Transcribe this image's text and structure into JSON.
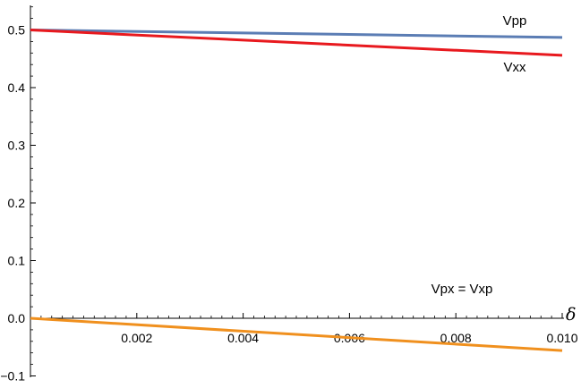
{
  "chart_data": {
    "type": "line",
    "xlabel": "δ",
    "ylabel": "",
    "xlim": [
      0,
      0.01
    ],
    "ylim": [
      -0.1,
      0.55
    ],
    "x_ticks": [
      0.002,
      0.004,
      0.006,
      0.008,
      0.01
    ],
    "x_tick_labels": [
      "0.002",
      "0.004",
      "0.006",
      "0.008",
      "0.010"
    ],
    "y_ticks": [
      -0.1,
      0.0,
      0.1,
      0.2,
      0.3,
      0.4,
      0.5
    ],
    "y_tick_labels": [
      "−0.1",
      "0.0",
      "0.1",
      "0.2",
      "0.3",
      "0.4",
      "0.5"
    ],
    "grid": false,
    "series": [
      {
        "name": "Vpp",
        "color": "#5B7DB4",
        "x": [
          0,
          0.01
        ],
        "y": [
          0.5,
          0.487
        ]
      },
      {
        "name": "Vxx",
        "color": "#E8191E",
        "x": [
          0,
          0.01
        ],
        "y": [
          0.5,
          0.456
        ]
      },
      {
        "name": "Vpx = Vxp",
        "color": "#F0901E",
        "x": [
          0,
          0.01
        ],
        "y": [
          0.0,
          -0.056
        ]
      }
    ],
    "annotations": [
      "Vpp",
      "Vxx",
      "Vpx = Vxp"
    ]
  }
}
